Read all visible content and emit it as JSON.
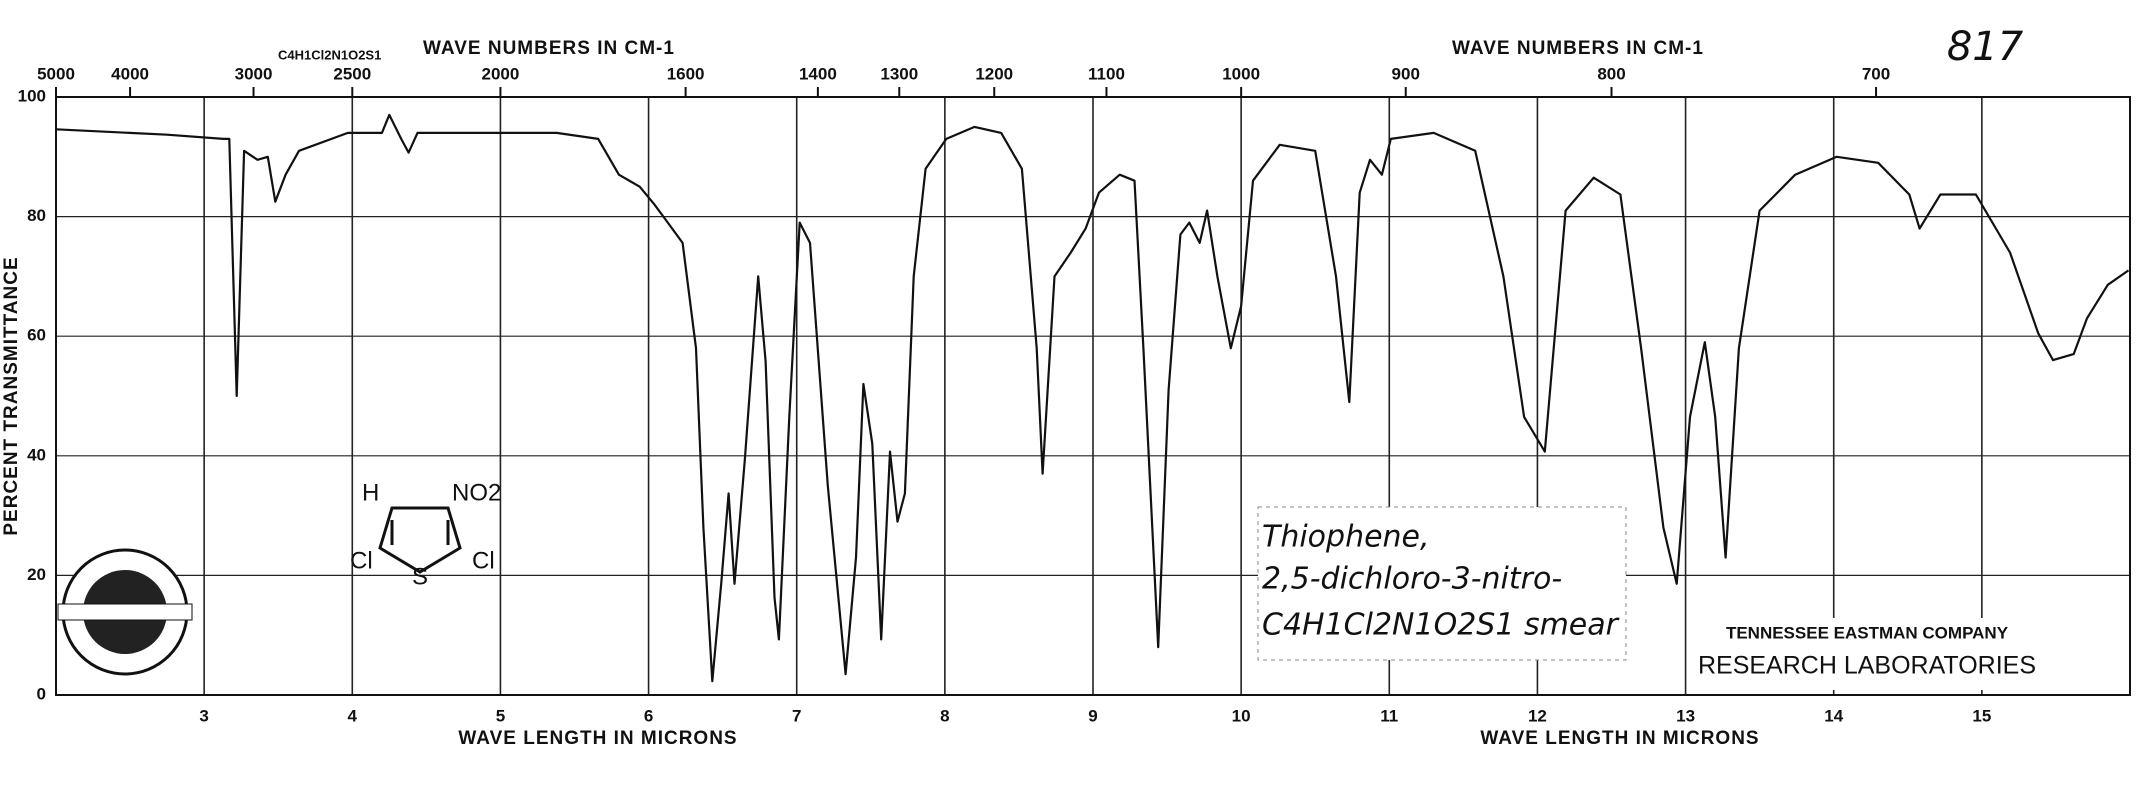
{
  "chart_data": {
    "type": "line",
    "sheet_number": "817",
    "formula_top": "C4H1Cl2N1O2S1",
    "top_axis_label": [
      "WAVE NUMBERS IN CM-1",
      "WAVE NUMBERS IN CM-1"
    ],
    "x_axis_label": [
      "WAVE LENGTH IN MICRONS",
      "WAVE LENGTH IN MICRONS"
    ],
    "y_axis_label": "PERCENT TRANSMITTANCE",
    "annotation": [
      "Thiophene,",
      "2,5-dichloro-3-nitro-",
      "C4H1Cl2N1O2S1   smear"
    ],
    "company": [
      "TENNESSEE EASTMAN COMPANY",
      "RESEARCH LABORATORIES"
    ],
    "structure": {
      "h": "H",
      "no2": "NO2",
      "cl_left": "Cl",
      "s": "S",
      "cl_right": "Cl"
    },
    "color": "#111111",
    "grid": true,
    "xlim": [
      2,
      16
    ],
    "ylim": [
      0,
      100
    ],
    "xticks": [
      3,
      4,
      5,
      6,
      7,
      8,
      9,
      10,
      11,
      12,
      13,
      14,
      15
    ],
    "yticks": [
      0,
      20,
      40,
      60,
      80,
      100
    ],
    "x2ticks": [
      5000,
      4000,
      3000,
      2500,
      2000,
      1600,
      1400,
      1300,
      1200,
      1100,
      1000,
      900,
      800,
      700
    ],
    "x": [
      2.0,
      2.75,
      3.13,
      3.17,
      3.22,
      3.27,
      3.36,
      3.43,
      3.48,
      3.55,
      3.64,
      3.97,
      4.2,
      4.25,
      4.33,
      4.38,
      4.44,
      5.38,
      5.66,
      5.8,
      5.94,
      6.04,
      6.13,
      6.23,
      6.32,
      6.37,
      6.43,
      6.49,
      6.54,
      6.58,
      6.65,
      6.74,
      6.79,
      6.85,
      6.88,
      6.95,
      7.02,
      7.09,
      7.21,
      7.33,
      7.4,
      7.45,
      7.51,
      7.57,
      7.63,
      7.68,
      7.73,
      7.79,
      7.87,
      8.01,
      8.2,
      8.38,
      8.52,
      8.62,
      8.66,
      8.74,
      8.85,
      8.95,
      9.04,
      9.18,
      9.28,
      9.34,
      9.44,
      9.51,
      9.59,
      9.65,
      9.72,
      9.77,
      9.84,
      9.93,
      10.0,
      10.08,
      10.26,
      10.5,
      10.64,
      10.73,
      10.8,
      10.87,
      10.95,
      11.01,
      11.3,
      11.58,
      11.77,
      11.91,
      12.05,
      12.19,
      12.38,
      12.56,
      12.7,
      12.85,
      12.94,
      13.03,
      13.13,
      13.2,
      13.27,
      13.36,
      13.5,
      13.74,
      14.02,
      14.3,
      14.51,
      14.58,
      14.72,
      14.96,
      15.19,
      15.38,
      15.48,
      15.62,
      15.71,
      15.85,
      15.99
    ],
    "values": [
      94.6,
      93.7,
      93,
      93,
      50,
      91,
      89.5,
      90,
      82.5,
      87,
      91,
      94,
      94,
      97,
      93,
      90.7,
      94,
      94,
      93,
      87,
      85,
      82,
      79,
      75.6,
      58,
      28,
      2.3,
      18.6,
      33.7,
      18.6,
      39.5,
      70,
      55.8,
      16.3,
      9.3,
      46.5,
      79,
      75.6,
      35,
      3.5,
      23,
      52,
      42,
      9.3,
      40.7,
      29,
      33.7,
      70,
      88,
      93,
      95,
      94,
      88,
      58,
      37,
      70,
      74,
      78,
      84,
      87,
      86,
      58,
      8,
      51,
      77,
      79,
      75.6,
      81,
      70,
      58,
      65,
      86,
      92,
      91,
      70,
      49,
      84,
      89.5,
      87,
      93,
      94,
      91,
      70,
      46.5,
      40.7,
      81,
      86.5,
      83.7,
      58,
      28,
      18.6,
      46.5,
      59,
      46.5,
      23,
      58,
      81,
      87,
      90,
      89,
      83.7,
      78,
      83.7,
      83.7,
      74,
      60.5,
      56,
      57,
      63,
      68.6,
      71
    ]
  }
}
